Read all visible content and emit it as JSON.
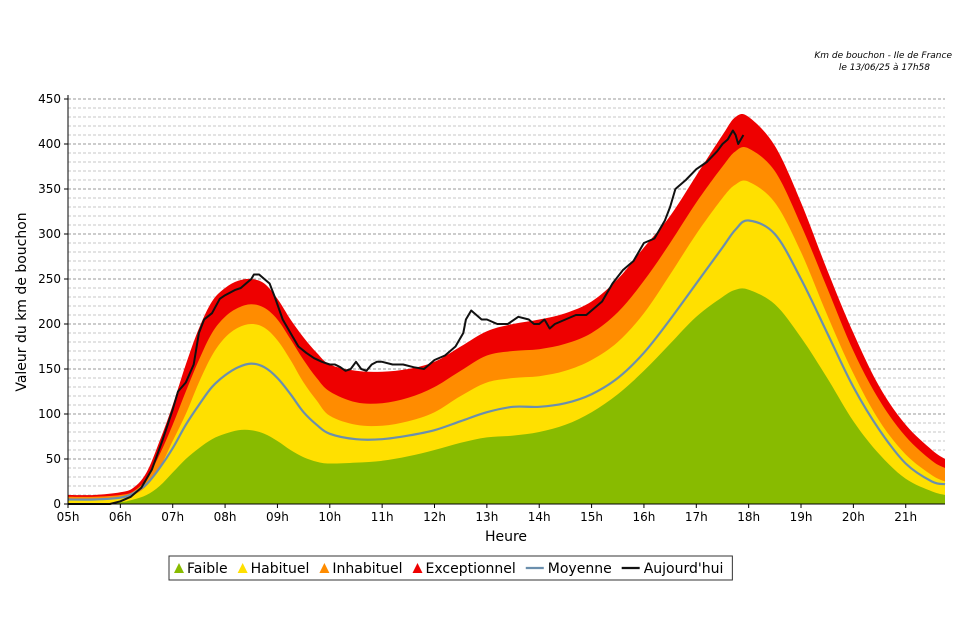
{
  "chart_data": {
    "type": "area",
    "title": [
      "Km de bouchon - Ile de France",
      "le 13/06/25 à 17h58"
    ],
    "xlabel": "Heure",
    "ylabel": "Valeur du  km de bouchon",
    "xlim": [
      5,
      21.75
    ],
    "ylim": [
      0,
      450
    ],
    "yticks": [
      0,
      50,
      100,
      150,
      200,
      250,
      300,
      350,
      400,
      450
    ],
    "xticks": [
      5,
      6,
      7,
      8,
      9,
      10,
      11,
      12,
      13,
      14,
      15,
      16,
      17,
      18,
      19,
      20,
      21
    ],
    "xtick_labels": [
      "05h",
      "06h",
      "07h",
      "08h",
      "09h",
      "10h",
      "11h",
      "12h",
      "13h",
      "14h",
      "15h",
      "16h",
      "17h",
      "18h",
      "19h",
      "20h",
      "21h"
    ],
    "grid": {
      "horizontal": "dashed",
      "minor_step": 10
    },
    "x": [
      5.0,
      5.5,
      6.0,
      6.25,
      6.5,
      6.75,
      7.0,
      7.25,
      7.5,
      7.75,
      8.0,
      8.25,
      8.5,
      8.75,
      9.0,
      9.25,
      9.5,
      9.75,
      10.0,
      10.5,
      11.0,
      11.5,
      12.0,
      12.5,
      13.0,
      13.5,
      14.0,
      14.5,
      15.0,
      15.5,
      16.0,
      16.5,
      17.0,
      17.5,
      17.75,
      18.0,
      18.5,
      19.0,
      19.5,
      20.0,
      20.5,
      21.0,
      21.5,
      21.75
    ],
    "series": [
      {
        "name": "Exceptionnel",
        "color": "#ee0000",
        "style": "area",
        "values": [
          10,
          10,
          13,
          18,
          35,
          70,
          110,
          155,
          195,
          225,
          240,
          248,
          250,
          245,
          228,
          205,
          185,
          168,
          155,
          148,
          147,
          150,
          158,
          175,
          192,
          200,
          205,
          212,
          225,
          250,
          285,
          320,
          365,
          410,
          430,
          430,
          398,
          335,
          260,
          190,
          130,
          88,
          60,
          50
        ]
      },
      {
        "name": "Inhabituel",
        "color": "#ff8c00",
        "style": "area",
        "values": [
          8,
          8,
          10,
          14,
          28,
          55,
          88,
          125,
          160,
          190,
          208,
          218,
          222,
          218,
          205,
          183,
          160,
          140,
          125,
          113,
          112,
          118,
          130,
          148,
          165,
          170,
          172,
          178,
          190,
          213,
          248,
          290,
          335,
          375,
          392,
          395,
          370,
          310,
          240,
          170,
          115,
          75,
          48,
          40
        ]
      },
      {
        "name": "Habituel",
        "color": "#ffe000",
        "style": "area",
        "values": [
          5,
          5,
          7,
          10,
          20,
          40,
          70,
          100,
          135,
          165,
          185,
          196,
          200,
          196,
          182,
          160,
          135,
          115,
          98,
          88,
          87,
          92,
          102,
          120,
          135,
          140,
          142,
          148,
          160,
          180,
          212,
          255,
          300,
          340,
          355,
          358,
          335,
          280,
          210,
          145,
          92,
          55,
          32,
          25
        ]
      },
      {
        "name": "Faible",
        "color": "#88bb00",
        "style": "area",
        "values": [
          0,
          0,
          2,
          5,
          10,
          20,
          35,
          50,
          62,
          72,
          78,
          82,
          82,
          78,
          70,
          60,
          52,
          47,
          45,
          46,
          48,
          53,
          60,
          68,
          74,
          76,
          80,
          88,
          102,
          122,
          148,
          178,
          208,
          230,
          238,
          238,
          222,
          185,
          140,
          92,
          55,
          28,
          14,
          10
        ]
      },
      {
        "name": "Moyenne",
        "color": "#6b8fad",
        "style": "line",
        "values": [
          5,
          5,
          7,
          12,
          22,
          40,
          62,
          88,
          110,
          130,
          143,
          152,
          156,
          152,
          140,
          122,
          102,
          88,
          78,
          72,
          72,
          76,
          82,
          92,
          102,
          108,
          108,
          112,
          122,
          140,
          168,
          205,
          245,
          285,
          305,
          315,
          300,
          250,
          190,
          130,
          82,
          45,
          25,
          22
        ]
      },
      {
        "name": "Aujourd'hui",
        "color": "#111111",
        "style": "line",
        "x": [
          5.0,
          5.8,
          6.0,
          6.2,
          6.4,
          6.6,
          6.8,
          7.0,
          7.1,
          7.25,
          7.4,
          7.5,
          7.6,
          7.75,
          7.9,
          8.0,
          8.1,
          8.2,
          8.3,
          8.4,
          8.5,
          8.55,
          8.65,
          8.75,
          8.85,
          8.95,
          9.1,
          9.25,
          9.4,
          9.55,
          9.7,
          9.85,
          10.0,
          10.1,
          10.2,
          10.3,
          10.4,
          10.5,
          10.6,
          10.7,
          10.8,
          10.9,
          11.0,
          11.2,
          11.4,
          11.6,
          11.8,
          11.9,
          12.0,
          12.2,
          12.4,
          12.55,
          12.6,
          12.7,
          12.8,
          12.9,
          13.0,
          13.2,
          13.4,
          13.6,
          13.8,
          13.9,
          14.0,
          14.1,
          14.2,
          14.3,
          14.5,
          14.7,
          14.9,
          15.0,
          15.2,
          15.4,
          15.6,
          15.8,
          15.9,
          16.0,
          16.2,
          16.4,
          16.5,
          16.6,
          16.8,
          17.0,
          17.2,
          17.4,
          17.5,
          17.6,
          17.7,
          17.75,
          17.8,
          17.9
        ],
        "values": [
          0,
          0,
          3,
          8,
          18,
          38,
          70,
          105,
          125,
          135,
          155,
          190,
          205,
          212,
          228,
          232,
          235,
          238,
          240,
          245,
          250,
          255,
          255,
          250,
          245,
          230,
          205,
          190,
          175,
          168,
          162,
          158,
          155,
          155,
          152,
          148,
          150,
          158,
          150,
          148,
          155,
          158,
          158,
          155,
          155,
          152,
          150,
          155,
          160,
          165,
          175,
          190,
          205,
          215,
          210,
          205,
          205,
          200,
          200,
          208,
          205,
          200,
          200,
          205,
          195,
          200,
          205,
          210,
          210,
          215,
          225,
          245,
          260,
          270,
          280,
          290,
          295,
          315,
          330,
          350,
          360,
          372,
          380,
          392,
          400,
          405,
          415,
          410,
          400,
          410
        ]
      }
    ],
    "legend": {
      "position": "bottom",
      "items": [
        {
          "label": "Faible",
          "color": "#88bb00",
          "symbol": "triangle"
        },
        {
          "label": "Habituel",
          "color": "#ffe000",
          "symbol": "triangle"
        },
        {
          "label": "Inhabituel",
          "color": "#ff8c00",
          "symbol": "triangle"
        },
        {
          "label": "Exceptionnel",
          "color": "#ee0000",
          "symbol": "triangle"
        },
        {
          "label": "Moyenne",
          "color": "#6b8fad",
          "symbol": "line"
        },
        {
          "label": "Aujourd'hui",
          "color": "#111111",
          "symbol": "line"
        }
      ]
    }
  }
}
